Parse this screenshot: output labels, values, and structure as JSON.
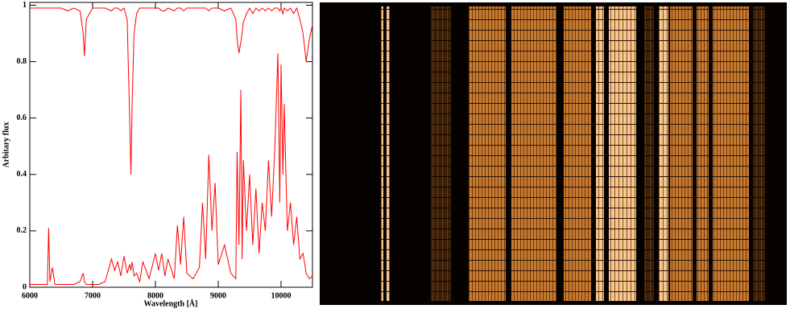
{
  "chart_data": {
    "type": "line",
    "xlabel": "Wavelength [Å]",
    "ylabel": "Arbitary flux",
    "xlim": [
      6000,
      10500
    ],
    "xticks": [
      6000,
      7000,
      8000,
      9000,
      10000
    ],
    "ylim": [
      0,
      1.01
    ],
    "yticks": [
      0,
      0.2,
      0.4,
      0.6,
      0.8,
      1
    ],
    "x": [
      6000,
      6100,
      6200,
      6280,
      6300,
      6320,
      6360,
      6400,
      6500,
      6600,
      6700,
      6800,
      6850,
      6870,
      6900,
      7000,
      7100,
      7200,
      7300,
      7350,
      7400,
      7450,
      7500,
      7550,
      7590,
      7610,
      7630,
      7660,
      7700,
      7750,
      7800,
      7900,
      8000,
      8050,
      8100,
      8150,
      8200,
      8300,
      8350,
      8400,
      8450,
      8500,
      8600,
      8700,
      8750,
      8800,
      8850,
      8900,
      8950,
      9000,
      9100,
      9200,
      9280,
      9300,
      9330,
      9360,
      9380,
      9400,
      9450,
      9500,
      9550,
      9600,
      9650,
      9700,
      9750,
      9800,
      9850,
      9900,
      9950,
      9980,
      10000,
      10030,
      10050,
      10100,
      10150,
      10200,
      10250,
      10300,
      10350,
      10400,
      10450,
      10500
    ],
    "series": [
      {
        "color": "#ff0000",
        "values": [
          0.99,
          0.99,
          0.99,
          0.99,
          0.99,
          0.99,
          0.99,
          0.99,
          0.99,
          0.98,
          0.99,
          0.98,
          0.9,
          0.82,
          0.95,
          0.99,
          0.99,
          0.99,
          0.98,
          0.99,
          0.99,
          0.98,
          0.99,
          0.95,
          0.6,
          0.4,
          0.66,
          0.9,
          0.97,
          0.99,
          0.99,
          0.99,
          0.99,
          0.99,
          0.98,
          0.98,
          0.99,
          0.98,
          0.99,
          0.99,
          0.98,
          0.99,
          0.99,
          0.99,
          0.99,
          0.99,
          0.98,
          0.99,
          0.99,
          0.99,
          0.98,
          0.99,
          0.95,
          0.88,
          0.83,
          0.87,
          0.9,
          0.94,
          0.97,
          0.99,
          0.97,
          0.99,
          0.98,
          0.99,
          0.98,
          0.99,
          0.98,
          0.99,
          0.99,
          0.98,
          0.99,
          0.97,
          0.99,
          0.98,
          0.99,
          0.97,
          0.99,
          0.95,
          0.9,
          0.8,
          0.88,
          0.93
        ]
      },
      {
        "color": "#ff0000",
        "values": [
          0.01,
          0.01,
          0.01,
          0.01,
          0.21,
          0.02,
          0.07,
          0.01,
          0.01,
          0.01,
          0.01,
          0.02,
          0.05,
          0.02,
          0.01,
          0.01,
          0.01,
          0.02,
          0.1,
          0.06,
          0.09,
          0.04,
          0.11,
          0.05,
          0.08,
          0.06,
          0.09,
          0.04,
          0.05,
          0.02,
          0.09,
          0.03,
          0.12,
          0.06,
          0.12,
          0.04,
          0.1,
          0.03,
          0.22,
          0.08,
          0.25,
          0.05,
          0.03,
          0.07,
          0.3,
          0.1,
          0.47,
          0.2,
          0.37,
          0.08,
          0.15,
          0.05,
          0.03,
          0.48,
          0.15,
          0.7,
          0.1,
          0.45,
          0.2,
          0.4,
          0.15,
          0.35,
          0.12,
          0.3,
          0.2,
          0.45,
          0.25,
          0.49,
          0.83,
          0.3,
          0.79,
          0.4,
          0.65,
          0.2,
          0.3,
          0.15,
          0.25,
          0.1,
          0.12,
          0.05,
          0.03,
          0.04
        ]
      }
    ]
  }
}
